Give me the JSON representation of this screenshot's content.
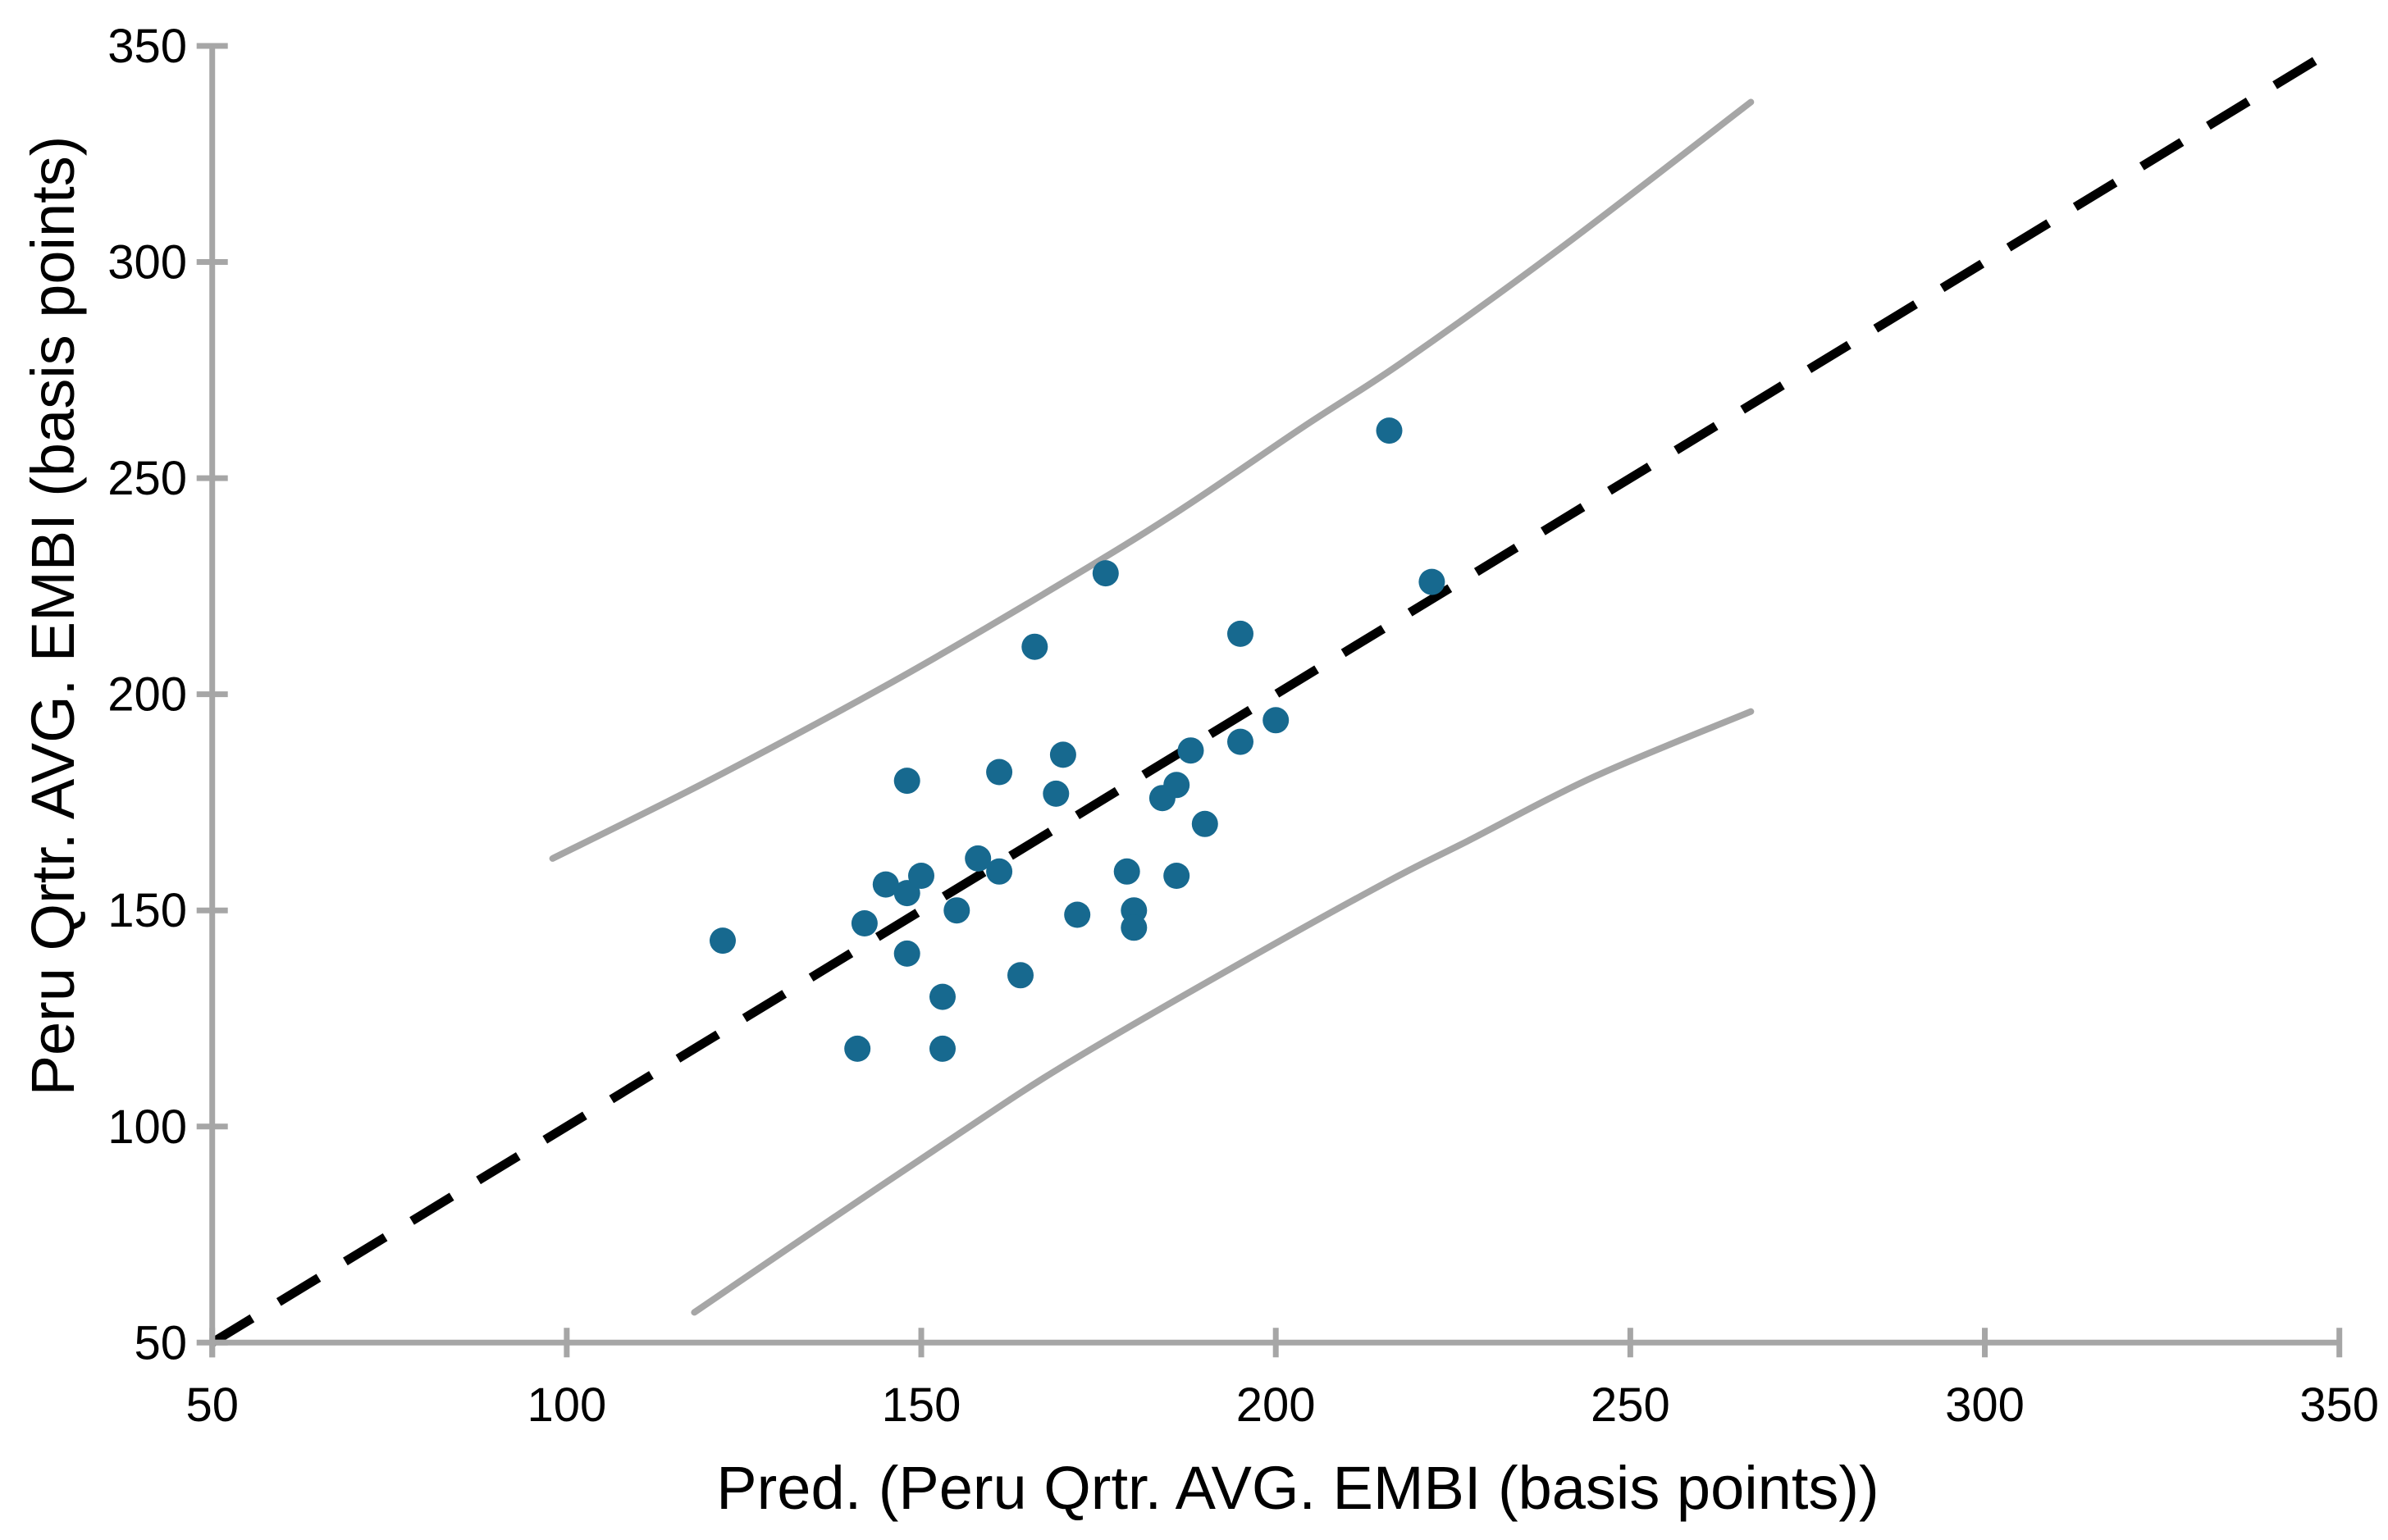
{
  "chart_data": {
    "type": "scatter",
    "title": "",
    "xlabel": "Pred. (Peru Qrtr. AVG. EMBI (basis points))",
    "ylabel": "Peru Qrtr. AVG. EMBI (basis points)",
    "xlim": [
      50,
      350
    ],
    "ylim": [
      50,
      350
    ],
    "x_ticks": [
      "50",
      "100",
      "150",
      "200",
      "250",
      "300",
      "350"
    ],
    "y_ticks": [
      "50",
      "100",
      "150",
      "200",
      "250",
      "300",
      "350"
    ],
    "grid": false,
    "legend": null,
    "points": [
      [
        122,
        143
      ],
      [
        141,
        118
      ],
      [
        142,
        147
      ],
      [
        145,
        156
      ],
      [
        148,
        154
      ],
      [
        148,
        180
      ],
      [
        148,
        140
      ],
      [
        150,
        158
      ],
      [
        153,
        130
      ],
      [
        153,
        118
      ],
      [
        155,
        150
      ],
      [
        158,
        162
      ],
      [
        161,
        182
      ],
      [
        161,
        159
      ],
      [
        164,
        135
      ],
      [
        166,
        211
      ],
      [
        169,
        177
      ],
      [
        170,
        186
      ],
      [
        172,
        149
      ],
      [
        176,
        228
      ],
      [
        179,
        159
      ],
      [
        180,
        150
      ],
      [
        180,
        146
      ],
      [
        184,
        176
      ],
      [
        186,
        179
      ],
      [
        186,
        158
      ],
      [
        188,
        187
      ],
      [
        190,
        170
      ],
      [
        195,
        214
      ],
      [
        195,
        189
      ],
      [
        200,
        194
      ],
      [
        216,
        261
      ],
      [
        222,
        226
      ]
    ],
    "identity_line": {
      "x1": 50,
      "y1": 50,
      "x2": 350,
      "y2": 350,
      "style": "dashed"
    },
    "band_upper": [
      [
        98,
        162
      ],
      [
        120,
        180
      ],
      [
        145,
        202
      ],
      [
        165,
        221
      ],
      [
        185,
        241
      ],
      [
        204,
        262
      ],
      [
        218,
        277
      ],
      [
        240,
        303
      ],
      [
        267,
        337
      ]
    ],
    "band_lower": [
      [
        118,
        57
      ],
      [
        135,
        76
      ],
      [
        155,
        98
      ],
      [
        170,
        114
      ],
      [
        192,
        135
      ],
      [
        215,
        156
      ],
      [
        227,
        166
      ],
      [
        245,
        181
      ],
      [
        267,
        196
      ]
    ],
    "colors": {
      "point": "#17698f",
      "axis": "#a6a6a6",
      "band": "#a6a6a6",
      "identity": "#000000",
      "text": "#000000"
    }
  }
}
